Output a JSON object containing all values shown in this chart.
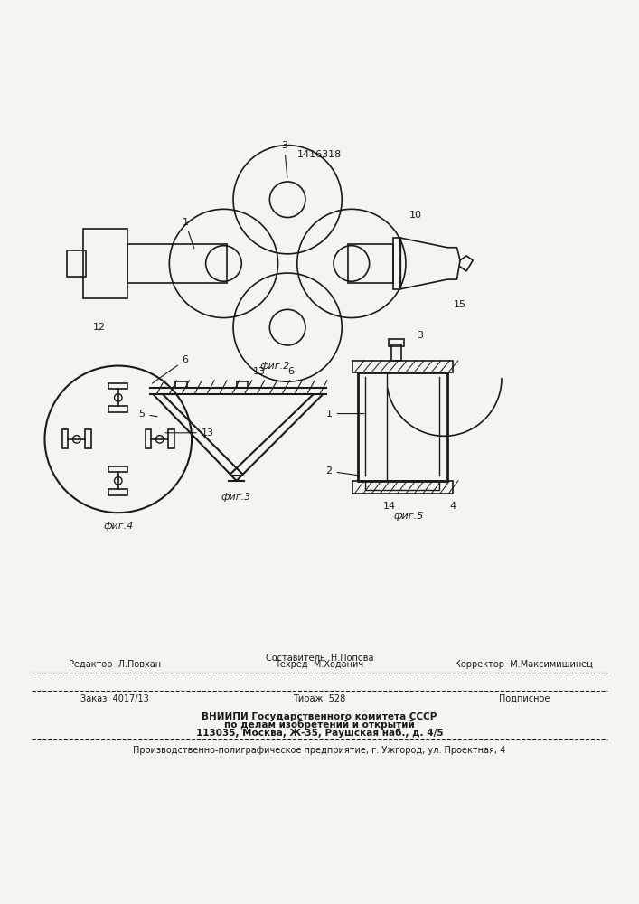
{
  "patent_number": "1416318",
  "bg_color": "#f5f5f0",
  "line_color": "#1a1a1a",
  "fig2_label": "фиг.2",
  "fig3_label": "фиг.3",
  "fig4_label": "фиг.4",
  "fig5_label": "фиг.5"
}
